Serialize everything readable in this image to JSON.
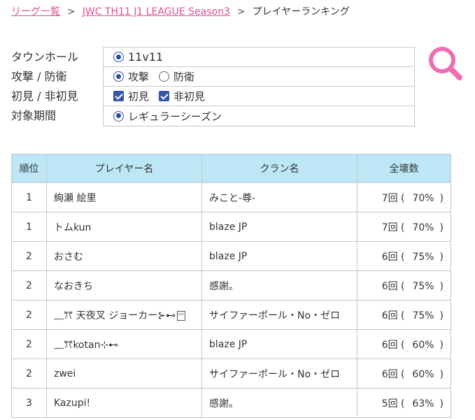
{
  "breadcrumb": {
    "league_list": "リーグ一覧",
    "league": "JWC TH11 J1 LEAGUE Season3",
    "current": "プレイヤーランキング",
    "separator": ">"
  },
  "filters": {
    "townhall": {
      "label": "タウンホール",
      "options": [
        {
          "text": "11v11",
          "selected": true
        }
      ]
    },
    "attack_defense": {
      "label": "攻撃 / 防衛",
      "options": [
        {
          "text": "攻撃",
          "selected": true
        },
        {
          "text": "防衛",
          "selected": false
        }
      ]
    },
    "first_seen": {
      "label": "初見 / 非初見",
      "options": [
        {
          "text": "初見",
          "checked": true
        },
        {
          "text": "非初見",
          "checked": true
        }
      ]
    },
    "period": {
      "label": "対象期間",
      "options": [
        {
          "text": "レギュラーシーズン",
          "selected": true
        }
      ]
    }
  },
  "search_button": {
    "icon": "search-icon",
    "color": "#f06cb4"
  },
  "table": {
    "headers": {
      "rank": "順位",
      "player": "プレイヤー名",
      "clan": "クラン名",
      "stars": "全壊数"
    },
    "rows": [
      {
        "rank": "1",
        "player": "絢瀬 絵里",
        "clan": "みこと-尊-",
        "count": "7回 (",
        "pct": "70%",
        "close": ")"
      },
      {
        "rank": "1",
        "player": "トムkun",
        "clan": "blaze JP",
        "count": "7回 (",
        "pct": "70%",
        "close": ")"
      },
      {
        "rank": "2",
        "player": "おさむ",
        "clan": "blaze JP",
        "count": "6回 (",
        "pct": "75%",
        "close": ")"
      },
      {
        "rank": "2",
        "player": "なおきち",
        "clan": "感謝。",
        "count": "6回 (",
        "pct": "75%",
        "close": ")"
      },
      {
        "rank": "2",
        "player": "﹏ꔫ 天夜叉 ジョーカー⊱⊷",
        "clan": "サイファーポール・No・ゼロ",
        "count": "6回 (",
        "pct": "75%",
        "close": ")"
      },
      {
        "rank": "2",
        "player": "﹏ꔫkotan⊹⊷",
        "clan": "blaze JP",
        "count": "6回 (",
        "pct": "60%",
        "close": ")"
      },
      {
        "rank": "2",
        "player": "zwei",
        "clan": "サイファーポール・No・ゼロ",
        "count": "6回 (",
        "pct": "60%",
        "close": ")"
      },
      {
        "rank": "3",
        "player": "Kazupi!",
        "clan": "感謝。",
        "count": "5回 (",
        "pct": "63%",
        "close": ")"
      }
    ]
  }
}
